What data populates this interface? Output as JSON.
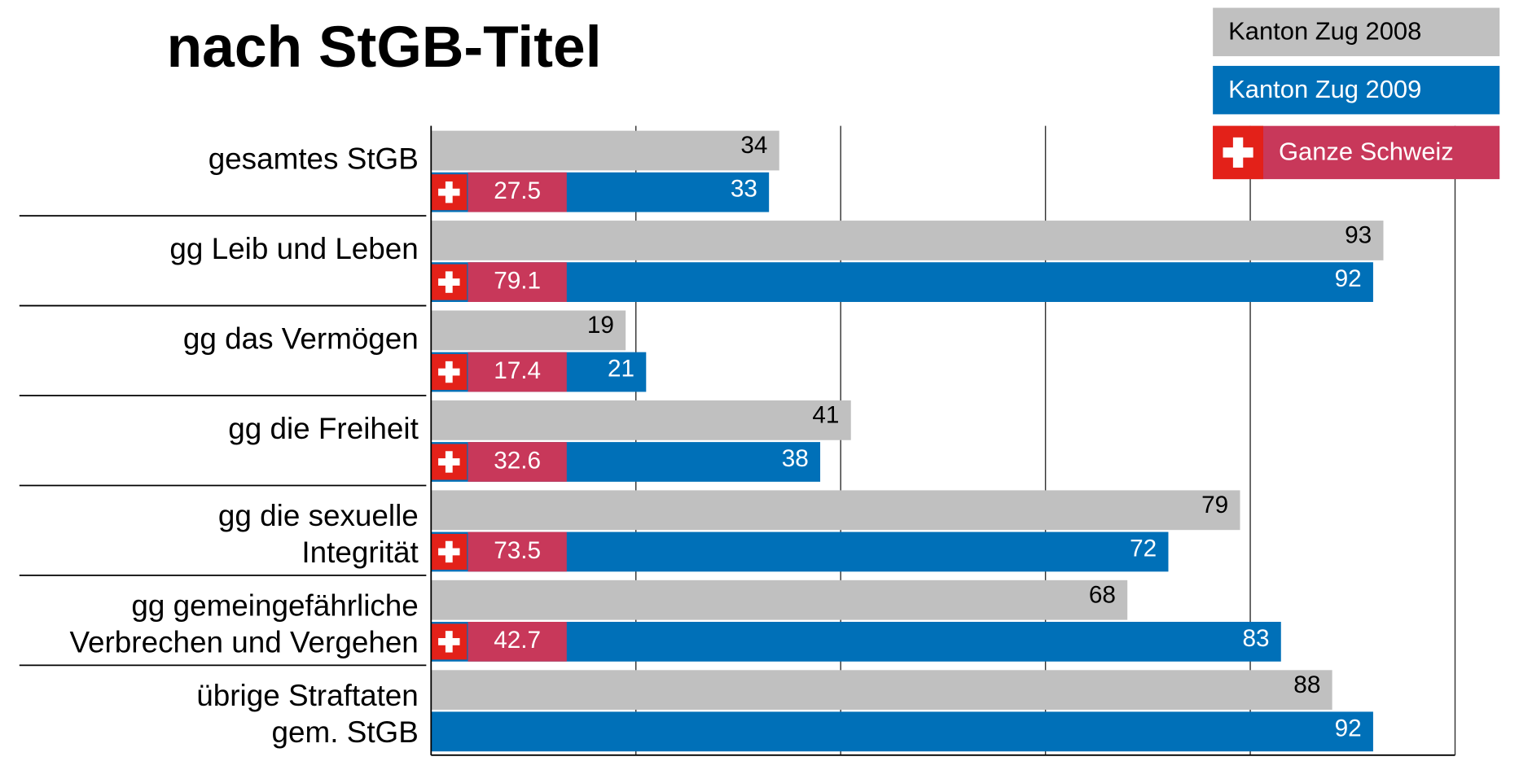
{
  "chart_data": {
    "type": "bar",
    "title": "nach StGB-Titel",
    "categories": [
      [
        "gesamtes StGB"
      ],
      [
        "gg Leib und Leben"
      ],
      [
        "gg das Vermögen"
      ],
      [
        "gg die Freiheit"
      ],
      [
        "gg die sexuelle",
        "Integrität"
      ],
      [
        "gg gemeingefährliche",
        "Verbrechen und Vergehen"
      ],
      [
        "übrige Straftaten",
        "gem. StGB"
      ]
    ],
    "series": [
      {
        "name": "Kanton Zug 2008",
        "color": "#c0c0c0",
        "values": [
          34,
          93,
          19,
          41,
          79,
          68,
          88
        ]
      },
      {
        "name": "Kanton Zug 2009",
        "color": "#0070b8",
        "values": [
          33,
          92,
          21,
          38,
          72,
          83,
          92
        ]
      },
      {
        "name": "Ganze Schweiz",
        "color": "#c8385a",
        "values": [
          27.5,
          79.1,
          17.4,
          32.6,
          73.5,
          42.7,
          null
        ]
      }
    ],
    "xlim": [
      0,
      100
    ],
    "xticks": [
      0,
      20,
      40,
      60,
      80,
      100
    ],
    "grid": true
  }
}
